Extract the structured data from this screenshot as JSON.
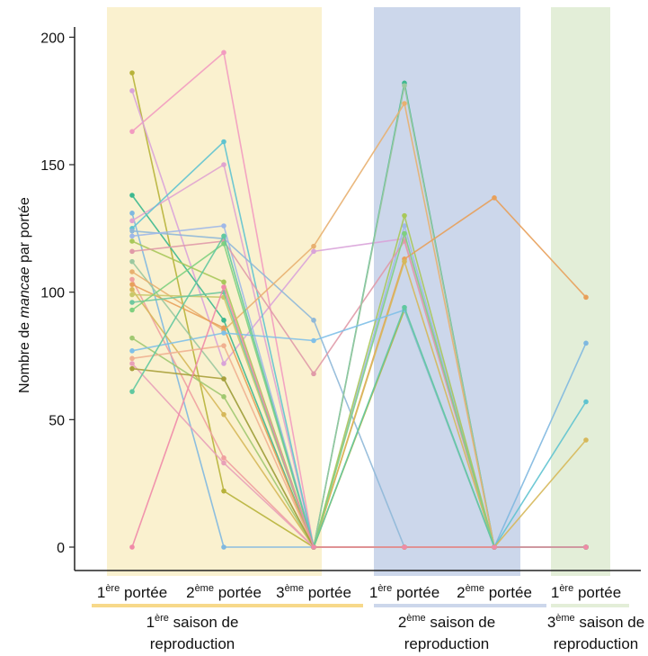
{
  "chart_data": {
    "type": "line",
    "ylabel": {
      "prefix": "Nombre de ",
      "italic": "mancae",
      "suffix": " par portée"
    },
    "ylim": [
      0,
      205
    ],
    "yticks": [
      0,
      50,
      100,
      150,
      200
    ],
    "grid": false,
    "categories": [
      {
        "sup_num": "1",
        "sup": "ère",
        "text": " portée"
      },
      {
        "sup_num": "2",
        "sup": "ème",
        "text": " portée"
      },
      {
        "sup_num": "3",
        "sup": "ème",
        "text": " portée"
      },
      {
        "sup_num": "1",
        "sup": "ère",
        "text": " portée"
      },
      {
        "sup_num": "2",
        "sup": "ème",
        "text": " portée"
      },
      {
        "sup_num": "1",
        "sup": "ère",
        "text": " portée"
      }
    ],
    "seasons": [
      {
        "num": "1",
        "sup": "ère",
        "line1": "saison de",
        "line2": "reproduction",
        "color": "#faf1cf",
        "underline": "#f7d98a",
        "start": 0,
        "end": 2
      },
      {
        "num": "2",
        "sup": "ème",
        "line1": "saison de",
        "line2": "reproduction",
        "color": "#ccd7eb",
        "underline": "#ccd7eb",
        "start": 3,
        "end": 4
      },
      {
        "num": "3",
        "sup": "ème",
        "line1": "saison de",
        "line2": "reproduction",
        "color": "#e3eed8",
        "underline": "#e3eed8",
        "start": 5,
        "end": 5
      }
    ],
    "series": [
      {
        "color": "#b7b23a",
        "values": [
          186,
          22,
          0,
          93,
          0,
          0
        ]
      },
      {
        "color": "#f29bc0",
        "values": [
          163,
          194,
          0,
          0,
          0,
          0
        ]
      },
      {
        "color": "#d9a3d9",
        "values": [
          179,
          72,
          116,
          121,
          0,
          0
        ]
      },
      {
        "color": "#3cb88f",
        "values": [
          138,
          89,
          0,
          182,
          0,
          0
        ]
      },
      {
        "color": "#7fb8e0",
        "values": [
          131,
          0,
          0,
          0,
          0,
          80
        ]
      },
      {
        "color": "#e0a3d0",
        "values": [
          128,
          150,
          0,
          0,
          0,
          0
        ]
      },
      {
        "color": "#5fc3d0",
        "values": [
          125,
          159,
          0,
          0,
          0,
          57
        ]
      },
      {
        "color": "#8fb8d8",
        "values": [
          124,
          121,
          89,
          0,
          0,
          0
        ]
      },
      {
        "color": "#9fb8e8",
        "values": [
          122,
          126,
          0,
          126,
          0,
          0
        ]
      },
      {
        "color": "#a8c85a",
        "values": [
          120,
          104,
          0,
          130,
          0,
          0
        ]
      },
      {
        "color": "#e09aa8",
        "values": [
          116,
          120,
          68,
          120,
          0,
          0
        ]
      },
      {
        "color": "#9bc8a0",
        "values": [
          112,
          66,
          0,
          181,
          0,
          0
        ]
      },
      {
        "color": "#e8b070",
        "values": [
          108,
          85,
          118,
          174,
          0,
          0
        ]
      },
      {
        "color": "#f0a0a0",
        "values": [
          105,
          35,
          0,
          0,
          0,
          0
        ]
      },
      {
        "color": "#e8a05a",
        "values": [
          103,
          86,
          0,
          113,
          137,
          98
        ]
      },
      {
        "color": "#d6b85a",
        "values": [
          101,
          52,
          0,
          112,
          0,
          42
        ]
      },
      {
        "color": "#c8c86a",
        "values": [
          99,
          98,
          0,
          0,
          0,
          0
        ]
      },
      {
        "color": "#6fc89f",
        "values": [
          96,
          100,
          0,
          0,
          0,
          0
        ]
      },
      {
        "color": "#7fd07f",
        "values": [
          93,
          119,
          0,
          123,
          0,
          0
        ]
      },
      {
        "color": "#a0c870",
        "values": [
          82,
          59,
          0,
          0,
          0,
          0
        ]
      },
      {
        "color": "#80c0e8",
        "values": [
          77,
          84,
          81,
          93,
          0,
          0
        ]
      },
      {
        "color": "#f0b090",
        "values": [
          74,
          79,
          0,
          0,
          0,
          0
        ]
      },
      {
        "color": "#e8a0b8",
        "values": [
          72,
          33,
          0,
          0,
          0,
          0
        ]
      },
      {
        "color": "#a8a03a",
        "values": [
          70,
          66,
          0,
          0,
          0,
          0
        ]
      },
      {
        "color": "#60c8a0",
        "values": [
          61,
          122,
          0,
          94,
          0,
          0
        ]
      },
      {
        "color": "#f08aa8",
        "values": [
          0,
          102,
          0,
          0,
          0,
          0
        ]
      }
    ]
  }
}
